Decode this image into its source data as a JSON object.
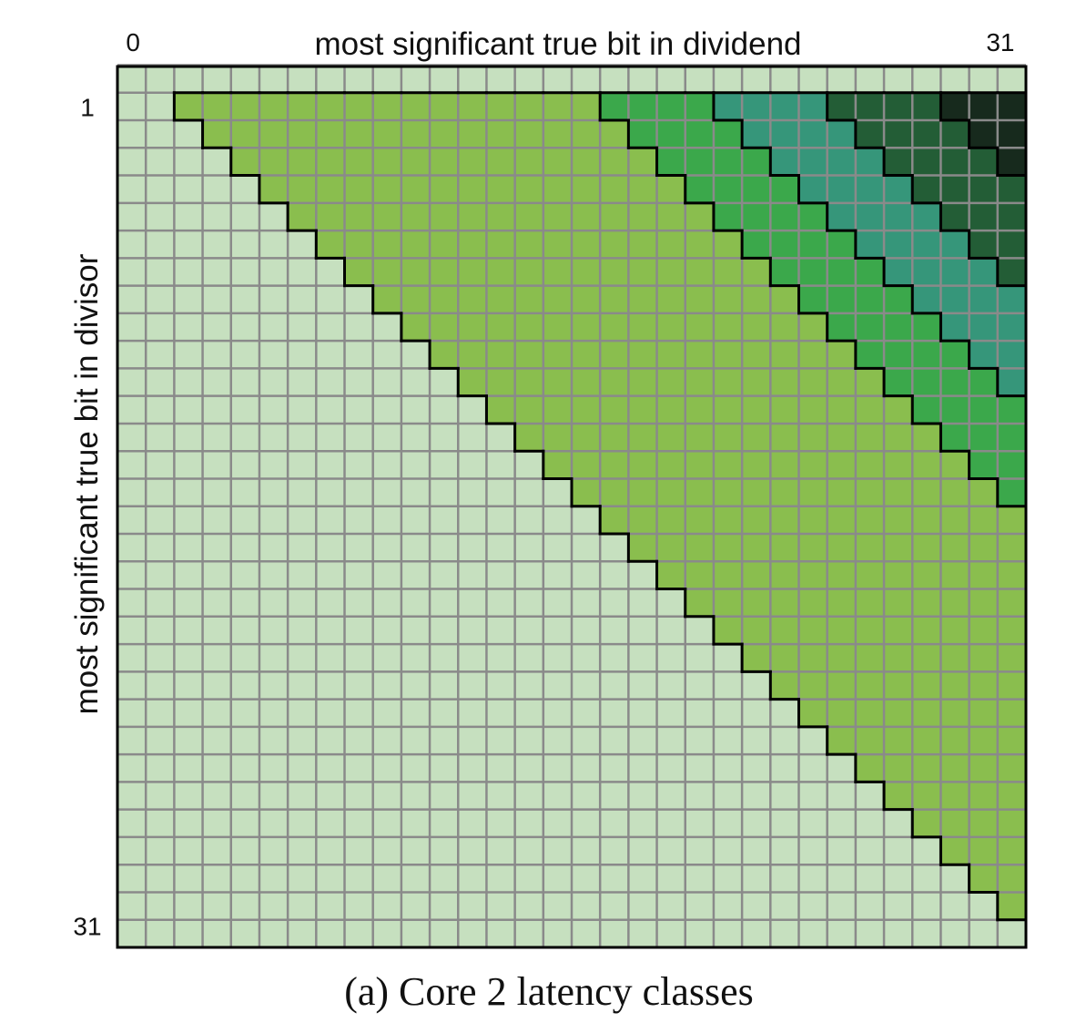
{
  "chart_data": {
    "type": "heatmap",
    "title": "",
    "caption": "(a) Core 2 latency classes",
    "xlabel": "most significant true bit in dividend",
    "ylabel": "most significant true bit in divisor",
    "x_range": [
      0,
      31
    ],
    "y_range": [
      1,
      31
    ],
    "x_tick_labels": [
      "0",
      "31"
    ],
    "y_tick_labels": [
      "1",
      "31"
    ],
    "grid": true,
    "class_colors": [
      "#c6e0bf",
      "#8abe4e",
      "#3ba84b",
      "#36967a",
      "#235d36",
      "#172a1d"
    ],
    "class_boundaries": {
      "description_rows": "for divisor bit y (1..31): cell (x,y) is class 0 if x < y + 1, class 1 if y+1 <= x < y+16, class 2 if y+16 <= x < y+20, class 3 if y+20 <= x < y+24, class 4 if y+24 <= x < y+28, class 5 if x >= y+28",
      "offsets": [
        1,
        16,
        20,
        24,
        28
      ]
    }
  }
}
